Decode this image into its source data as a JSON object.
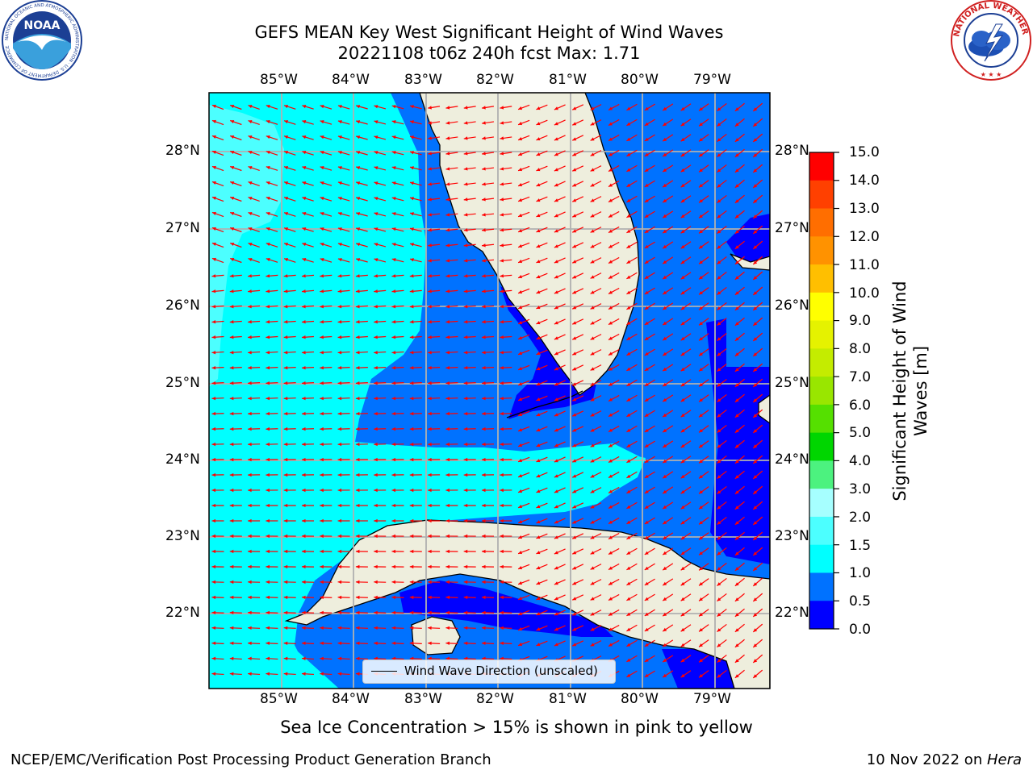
{
  "title_line1": "GEFS MEAN Key West Significant Height of Wind Waves",
  "title_line2": "20221108 t06z 240h fcst   Max: 1.71",
  "logos": {
    "left": {
      "name": "noaa-logo",
      "text": "NOAA",
      "ring_text": "NATIONAL OCEANIC AND ATMOSPHERIC ADMINISTRATION · U.S. DEPARTMENT OF COMMERCE"
    },
    "right": {
      "name": "nws-logo",
      "ring_text": "NATIONAL WEATHER SERVICE"
    }
  },
  "map": {
    "lon_labels": [
      "85°W",
      "84°W",
      "83°W",
      "82°W",
      "81°W",
      "80°W",
      "79°W"
    ],
    "lat_labels": [
      "28°N",
      "27°N",
      "26°N",
      "25°N",
      "24°N",
      "23°N",
      "22°N"
    ],
    "lon_range": [
      -86,
      -78.3
    ],
    "lat_range": [
      21.05,
      28.75
    ],
    "vector_color": "#ff0000",
    "legend_label": "Wind Wave Direction (unscaled)",
    "colors": {
      "land": "#eeeedd",
      "grid": "#b0b0b0",
      "coast": "#000000"
    }
  },
  "colorbar": {
    "title": "Significant Height of Wind Waves [m]",
    "title_line1": "Significant Height of Wind",
    "title_line2": "Waves [m]",
    "tick_labels": [
      "15.0",
      "14.0",
      "13.0",
      "12.0",
      "11.0",
      "10.0",
      "9.0",
      "8.0",
      "7.0",
      "6.0",
      "5.0",
      "4.0",
      "3.0",
      "2.0",
      "1.5",
      "1.0",
      "0.5",
      "0.0"
    ],
    "bins": [
      {
        "from": 0.0,
        "to": 0.5,
        "color": "#0000ff"
      },
      {
        "from": 0.5,
        "to": 1.0,
        "color": "#0072ff"
      },
      {
        "from": 1.0,
        "to": 1.5,
        "color": "#00ffff"
      },
      {
        "from": 1.5,
        "to": 2.0,
        "color": "#4cffff"
      },
      {
        "from": 2.0,
        "to": 3.0,
        "color": "#a6ffff"
      },
      {
        "from": 3.0,
        "to": 4.0,
        "color": "#4cf27f"
      },
      {
        "from": 4.0,
        "to": 5.0,
        "color": "#00d600"
      },
      {
        "from": 5.0,
        "to": 6.0,
        "color": "#55e000"
      },
      {
        "from": 6.0,
        "to": 7.0,
        "color": "#99e600"
      },
      {
        "from": 7.0,
        "to": 8.0,
        "color": "#c4ec00"
      },
      {
        "from": 8.0,
        "to": 9.0,
        "color": "#e5f200"
      },
      {
        "from": 9.0,
        "to": 10.0,
        "color": "#ffff00"
      },
      {
        "from": 10.0,
        "to": 11.0,
        "color": "#ffbf00"
      },
      {
        "from": 11.0,
        "to": 12.0,
        "color": "#ff9200"
      },
      {
        "from": 12.0,
        "to": 13.0,
        "color": "#ff6e00"
      },
      {
        "from": 13.0,
        "to": 14.0,
        "color": "#ff4000"
      },
      {
        "from": 14.0,
        "to": 15.0,
        "color": "#ff0000"
      }
    ]
  },
  "subtitle": "Sea Ice Concentration > 15% is shown in pink to yellow",
  "footer_left": "NCEP/EMC/Verification Post Processing Product Generation Branch",
  "footer_right_date": "10 Nov 2022 on ",
  "footer_right_host": "Hera"
}
